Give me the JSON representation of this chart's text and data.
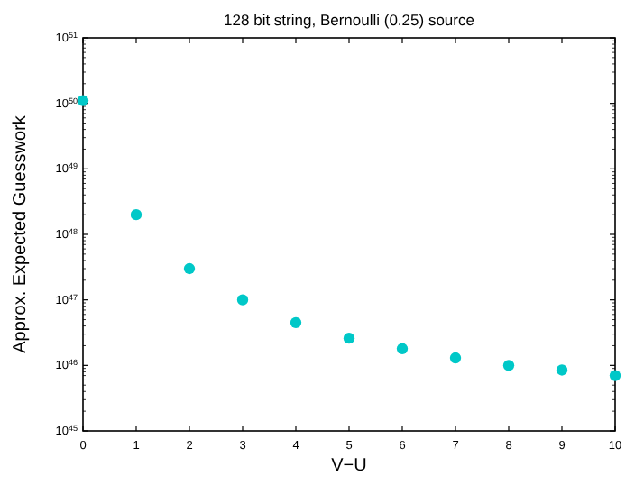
{
  "chart_data": {
    "type": "scatter",
    "title": "128 bit string, Bernoulli (0.25) source",
    "xlabel": "V−U",
    "ylabel": "Approx. Expected Guesswork",
    "log": "y",
    "marker": "circle",
    "grid": false,
    "x": [
      0,
      1,
      2,
      3,
      4,
      5,
      6,
      7,
      8,
      9,
      10
    ],
    "series": [
      {
        "color": "#00c8c8",
        "values": [
          1.1e+50,
          2e+48,
          3e+47,
          1e+47,
          4.5e+46,
          2.6e+46,
          1.8e+46,
          1.3e+46,
          1e+46,
          8.5e+45,
          7e+45
        ]
      }
    ],
    "xlim": [
      0,
      10
    ],
    "xticks": [
      0,
      1,
      2,
      3,
      4,
      5,
      6,
      7,
      8,
      9,
      10
    ],
    "ylim": [
      1e+45,
      1e+51
    ],
    "yticks": [
      {
        "value": 1e+45,
        "label": "10$^{45}$"
      },
      {
        "value": 1e+46,
        "label": "10$^{46}$"
      },
      {
        "value": 1e+47,
        "label": "10$^{47}$"
      },
      {
        "value": 1e+48,
        "label": "10$^{48}$"
      },
      {
        "value": 1e+49,
        "label": "10$^{49}$"
      },
      {
        "value": 1e+50,
        "label": "10$^{50}$"
      },
      {
        "value": 1e+51,
        "label": "10$^{51}$"
      }
    ]
  }
}
